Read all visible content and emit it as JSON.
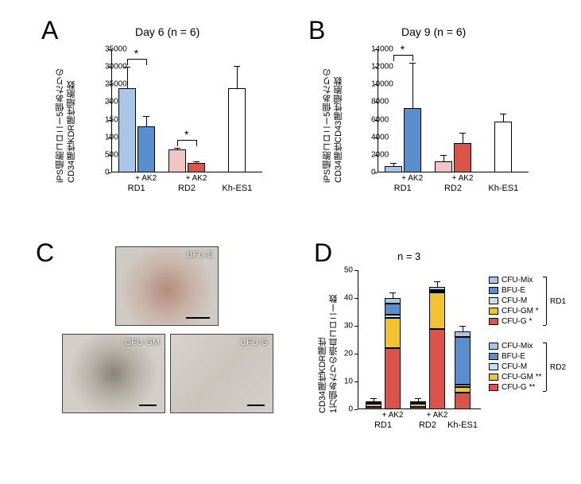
{
  "panelA": {
    "label": "A",
    "title": "Day 6 (n = 6)",
    "ylabel_line1": "iPS細胞コロニー5個あたりの",
    "ylabel_line2": "CD34陽性KDR陽性細胞数",
    "ymax": 35000,
    "ytick_step": 5000,
    "groups": [
      {
        "name": "RD1",
        "bars": [
          {
            "label": "",
            "value": 24000,
            "err": 6000,
            "color": "#a8c6e8"
          },
          {
            "label": "+ AK2",
            "value": 13000,
            "err": 3000,
            "color": "#5a8fcf"
          }
        ],
        "sig": "*"
      },
      {
        "name": "RD2",
        "bars": [
          {
            "label": "",
            "value": 6500,
            "err": 600,
            "color": "#f2c4c4"
          },
          {
            "label": "+ AK2",
            "value": 2700,
            "err": 400,
            "color": "#d9554a"
          }
        ],
        "sig": "*"
      },
      {
        "name": "Kh-ES1",
        "bars": [
          {
            "label": "",
            "value": 24000,
            "err": 6200,
            "color": "#ffffff"
          }
        ]
      }
    ]
  },
  "panelB": {
    "label": "B",
    "title": "Day 9 (n = 6)",
    "ylabel_line1": "iPS細胞コロニー5個あたりの",
    "ylabel_line2": "CD34陽性CD43陽性細胞数",
    "ymax": 14000,
    "ytick_step": 2000,
    "groups": [
      {
        "name": "RD1",
        "bars": [
          {
            "label": "",
            "value": 700,
            "err": 400,
            "color": "#a8c6e8"
          },
          {
            "label": "+ AK2",
            "value": 7300,
            "err": 5200,
            "color": "#5a8fcf"
          }
        ],
        "sig": "*"
      },
      {
        "name": "RD2",
        "bars": [
          {
            "label": "",
            "value": 1300,
            "err": 700,
            "color": "#f2c4c4"
          },
          {
            "label": "+ AK2",
            "value": 3300,
            "err": 1200,
            "color": "#d9554a"
          }
        ]
      },
      {
        "name": "Kh-ES1",
        "bars": [
          {
            "label": "",
            "value": 5800,
            "err": 900,
            "color": "#ffffff"
          }
        ]
      }
    ]
  },
  "panelC": {
    "label": "C",
    "photos": [
      {
        "name": "BFU-E",
        "tint": "bfue"
      },
      {
        "name": "CFU-GM",
        "tint": "cfugm"
      },
      {
        "name": "CFU-G",
        "tint": "cfug"
      }
    ]
  },
  "panelD": {
    "label": "D",
    "n_text": "n = 3",
    "ylabel_line1": "CD34陽性KDR陽性",
    "ylabel_line2": "1万個あたりの造血コロニー数",
    "ymax": 50,
    "ytick_step": 10,
    "legend_groups": [
      "RD1",
      "RD2"
    ],
    "legend_items": [
      {
        "key": "CFU-Mix",
        "color": "#a8c6e8"
      },
      {
        "key": "BFU-E",
        "color": "#5a8fcf"
      },
      {
        "key": "CFU-M",
        "color": "#c4e1f2"
      },
      {
        "key": "CFU-GM",
        "color": "#f1c232",
        "note1": "*",
        "note2": "**"
      },
      {
        "key": "CFU-G",
        "color": "#d9554a",
        "note1": "*",
        "note2": "**"
      }
    ],
    "bars": [
      {
        "group": "RD1",
        "variant": "",
        "segments": [
          {
            "k": "CFU-G",
            "v": 1
          },
          {
            "k": "CFU-GM",
            "v": 1
          },
          {
            "k": "CFU-M",
            "v": 0.2
          },
          {
            "k": "BFU-E",
            "v": 0.3
          },
          {
            "k": "CFU-Mix",
            "v": 0.5
          }
        ],
        "total_err": 1
      },
      {
        "group": "RD1",
        "variant": "+ AK2",
        "segments": [
          {
            "k": "CFU-G",
            "v": 22
          },
          {
            "k": "CFU-GM",
            "v": 11
          },
          {
            "k": "CFU-M",
            "v": 1
          },
          {
            "k": "BFU-E",
            "v": 4
          },
          {
            "k": "CFU-Mix",
            "v": 2
          }
        ],
        "total_err": 2
      },
      {
        "group": "RD2",
        "variant": "",
        "segments": [
          {
            "k": "CFU-G",
            "v": 1
          },
          {
            "k": "CFU-GM",
            "v": 1
          },
          {
            "k": "CFU-M",
            "v": 0.2
          },
          {
            "k": "BFU-E",
            "v": 0.3
          },
          {
            "k": "CFU-Mix",
            "v": 0.5
          }
        ],
        "total_err": 1
      },
      {
        "group": "RD2",
        "variant": "+ AK2",
        "segments": [
          {
            "k": "CFU-G",
            "v": 29
          },
          {
            "k": "CFU-GM",
            "v": 13
          },
          {
            "k": "CFU-M",
            "v": 0.5
          },
          {
            "k": "BFU-E",
            "v": 0.5
          },
          {
            "k": "CFU-Mix",
            "v": 1
          }
        ],
        "total_err": 2
      },
      {
        "group": "Kh-ES1",
        "variant": "",
        "segments": [
          {
            "k": "CFU-G",
            "v": 6
          },
          {
            "k": "CFU-GM",
            "v": 2
          },
          {
            "k": "CFU-M",
            "v": 1
          },
          {
            "k": "BFU-E",
            "v": 17
          },
          {
            "k": "CFU-Mix",
            "v": 2
          }
        ],
        "total_err": 2
      }
    ]
  },
  "colors": {
    "axis": "#000000"
  }
}
